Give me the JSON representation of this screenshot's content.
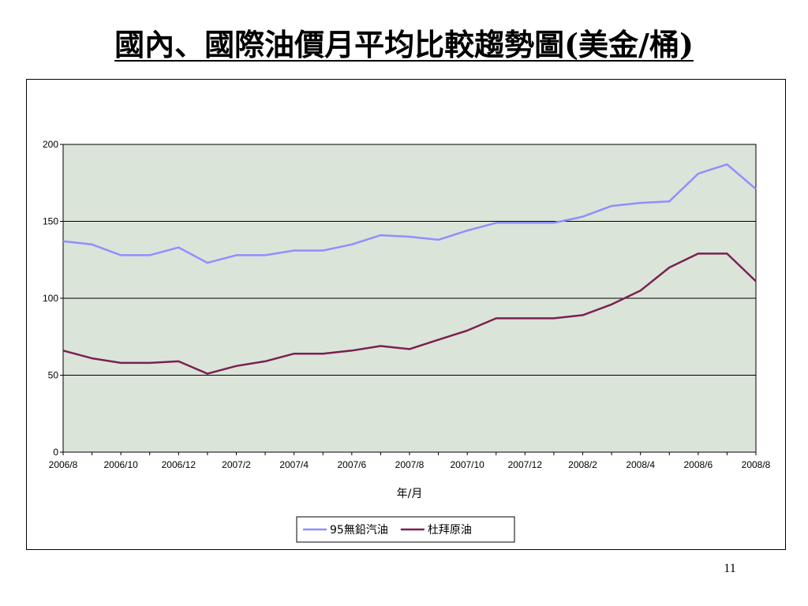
{
  "slide": {
    "title": "國內、國際油價月平均比較趨勢圖(美金/桶)",
    "page_number": "11"
  },
  "chart_data": {
    "type": "line",
    "title": "",
    "xlabel": "年/月",
    "ylabel": "",
    "ylim": [
      0,
      200
    ],
    "yticks": [
      0,
      50,
      100,
      150,
      200
    ],
    "grid": true,
    "legend_position": "bottom",
    "x": [
      "2006/8",
      "2006/9",
      "2006/10",
      "2006/11",
      "2006/12",
      "2007/1",
      "2007/2",
      "2007/3",
      "2007/4",
      "2007/5",
      "2007/6",
      "2007/7",
      "2007/8",
      "2007/9",
      "2007/10",
      "2007/11",
      "2007/12",
      "2008/1",
      "2008/2",
      "2008/3",
      "2008/4",
      "2008/5",
      "2008/6",
      "2008/7",
      "2008/8"
    ],
    "xtick_labels": [
      "2006/8",
      "2006/10",
      "2006/12",
      "2007/2",
      "2007/4",
      "2007/6",
      "2007/8",
      "2007/10",
      "2007/12",
      "2008/2",
      "2008/4",
      "2008/6",
      "2008/8"
    ],
    "series": [
      {
        "name": "95無鉛汽油",
        "color": "#8f8fff",
        "values": [
          137,
          135,
          128,
          128,
          133,
          123,
          128,
          128,
          131,
          131,
          135,
          141,
          140,
          138,
          144,
          149,
          149,
          149,
          153,
          160,
          162,
          163,
          181,
          187,
          171
        ]
      },
      {
        "name": "杜拜原油",
        "color": "#7a2150",
        "values": [
          66,
          61,
          58,
          58,
          59,
          51,
          56,
          59,
          64,
          64,
          66,
          69,
          67,
          73,
          79,
          87,
          87,
          87,
          89,
          96,
          105,
          120,
          129,
          129,
          111
        ]
      }
    ],
    "colors": {
      "plot_background": "#dbe4d9",
      "gridline": "#000000"
    }
  }
}
